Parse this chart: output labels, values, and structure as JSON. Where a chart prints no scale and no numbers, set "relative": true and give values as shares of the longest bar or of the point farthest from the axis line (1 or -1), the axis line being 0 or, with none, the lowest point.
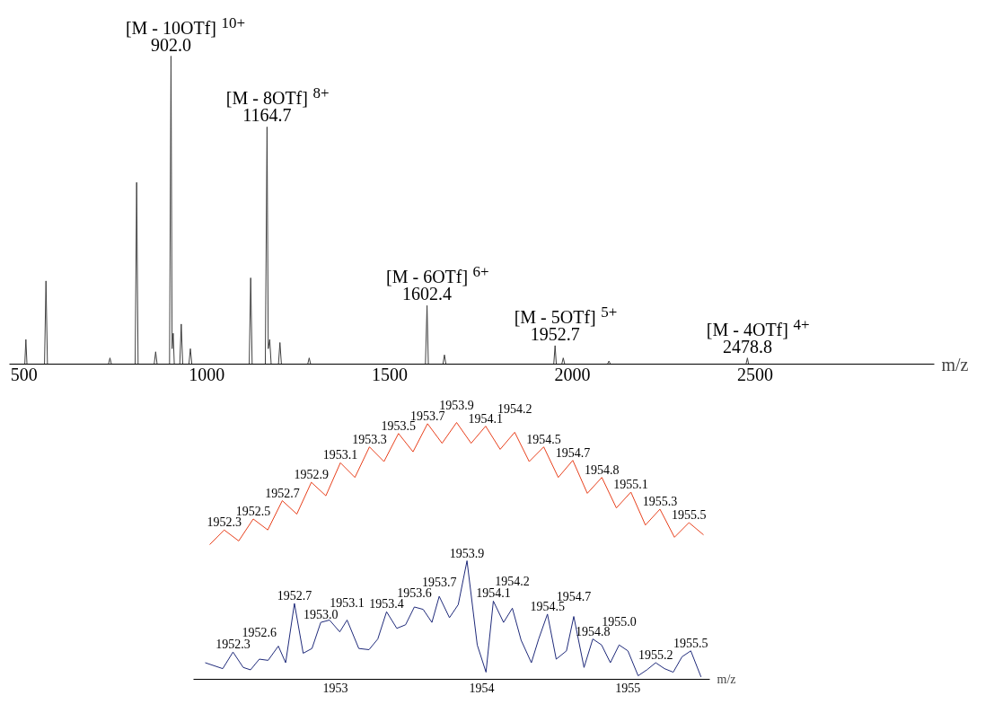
{
  "chart_data": [
    {
      "type": "line",
      "relative": true,
      "color": "#404040",
      "xlabel": "m/z",
      "xlim": [
        460,
        2990
      ],
      "xticks": [
        500,
        1000,
        1500,
        2000,
        2500
      ],
      "tick_labels": "x",
      "x": [
        500,
        502,
        505,
        508,
        556,
        560,
        564,
        731,
        735,
        739,
        804,
        808,
        812,
        856,
        860,
        864,
        898,
        902,
        905,
        908,
        911,
        926,
        930,
        934,
        951,
        955,
        959,
        1116,
        1120,
        1124,
        1160,
        1164.7,
        1168,
        1172,
        1176,
        1196,
        1200,
        1204,
        1276,
        1280,
        1284,
        1598,
        1602.4,
        1606,
        1646,
        1650,
        1654,
        1949,
        1952.7,
        1956,
        1971,
        1975,
        1979,
        2096,
        2100,
        2104,
        2475,
        2478.8,
        2482,
        2985
      ],
      "values": [
        0,
        0,
        0.08,
        0,
        0,
        0.27,
        0,
        0,
        0.02,
        0,
        0,
        0.59,
        0,
        0,
        0.04,
        0,
        0,
        1.0,
        0.05,
        0.1,
        0,
        0,
        0.13,
        0,
        0,
        0.05,
        0,
        0,
        0.28,
        0,
        0,
        0.77,
        0.05,
        0.08,
        0,
        0,
        0.07,
        0,
        0,
        0.02,
        0,
        0,
        0.19,
        0,
        0,
        0.03,
        0,
        0,
        0.06,
        0,
        0,
        0.02,
        0,
        0,
        0.01,
        0,
        0,
        0.02,
        0,
        0
      ],
      "annotations": [
        {
          "text": "902.0",
          "x": 902.0,
          "y": 1.0
        },
        {
          "text": "[M - 10OTf]$^{10+}$",
          "x": 902.0,
          "y": 1.0
        },
        {
          "text": "1164.7",
          "x": 1164.7,
          "y": 0.77
        },
        {
          "text": "[M - 8OTf]$^{8+}$",
          "x": 1164.7,
          "y": 0.77
        },
        {
          "text": "1602.4",
          "x": 1602.4,
          "y": 0.19
        },
        {
          "text": "[M - 6OTf]$^{6+}$",
          "x": 1602.4,
          "y": 0.19
        },
        {
          "text": "1952.7",
          "x": 1952.7,
          "y": 0.06
        },
        {
          "text": "[M - 5OTf]$^{5+}$",
          "x": 1952.7,
          "y": 0.06
        },
        {
          "text": "2478.8",
          "x": 2478.8,
          "y": 0.02
        },
        {
          "text": "[M - 4OTf]$^{4+}$",
          "x": 2478.8,
          "y": 0.02
        }
      ]
    },
    {
      "type": "line",
      "relative": true,
      "color": "#e8401c",
      "tick_labels": false,
      "categories": [
        null,
        null,
        null,
        null,
        null,
        null,
        null,
        null,
        null,
        null,
        null,
        null,
        null,
        null,
        null,
        null,
        null,
        null,
        null,
        null,
        null,
        null,
        null,
        null,
        null,
        null,
        null,
        null,
        null,
        null,
        null,
        null,
        null,
        null,
        null
      ],
      "values": [
        0,
        0.12,
        0.03,
        0.21,
        0.12,
        0.36,
        0.25,
        0.51,
        0.4,
        0.67,
        0.55,
        0.8,
        0.68,
        0.91,
        0.76,
        0.99,
        0.83,
        1.0,
        0.83,
        0.97,
        0.78,
        0.92,
        0.68,
        0.8,
        0.55,
        0.69,
        0.42,
        0.55,
        0.3,
        0.43,
        0.16,
        0.29,
        0.06,
        0.18,
        0.08
      ],
      "annotations": [
        "1952.3",
        "1952.5",
        "1952.7",
        "1952.9",
        "1953.1",
        "1953.3",
        "1953.5",
        "1953.7",
        "1953.9",
        "1954.1",
        "1954.2",
        "1954.5",
        "1954.7",
        "1954.8",
        "1955.1",
        "1955.3",
        "1955.5"
      ]
    },
    {
      "type": "line",
      "relative": true,
      "color": "#1f2a7a",
      "xlabel": "m/z",
      "xlim": [
        1952.03,
        1955.56
      ],
      "xticks": [
        1953,
        1954,
        1955
      ],
      "tick_labels": "x",
      "x": [
        1952.11,
        1952.23,
        1952.3,
        1952.37,
        1952.42,
        1952.48,
        1952.54,
        1952.61,
        1952.66,
        1952.72,
        1952.78,
        1952.84,
        1952.9,
        1952.96,
        1953.03,
        1953.08,
        1953.16,
        1953.23,
        1953.29,
        1953.35,
        1953.42,
        1953.48,
        1953.54,
        1953.6,
        1953.66,
        1953.71,
        1953.78,
        1953.84,
        1953.9,
        1953.97,
        1954.03,
        1954.08,
        1954.15,
        1954.21,
        1954.27,
        1954.34,
        1954.39,
        1954.45,
        1954.51,
        1954.58,
        1954.63,
        1954.7,
        1954.76,
        1954.82,
        1954.88,
        1954.94,
        1955.0,
        1955.07,
        1955.13,
        1955.19,
        1955.25,
        1955.31,
        1955.37,
        1955.43,
        1955.5
      ],
      "values": [
        0.14,
        0.09,
        0.23,
        0.1,
        0.08,
        0.17,
        0.16,
        0.28,
        0.14,
        0.64,
        0.22,
        0.26,
        0.48,
        0.5,
        0.4,
        0.5,
        0.26,
        0.25,
        0.34,
        0.57,
        0.43,
        0.46,
        0.61,
        0.59,
        0.48,
        0.7,
        0.52,
        0.63,
        1.0,
        0.29,
        0.06,
        0.66,
        0.48,
        0.6,
        0.33,
        0.14,
        0.34,
        0.55,
        0.17,
        0.24,
        0.53,
        0.1,
        0.34,
        0.29,
        0.14,
        0.29,
        0.24,
        0.03,
        0.08,
        0.14,
        0.09,
        0.06,
        0.19,
        0.24,
        0.02
      ],
      "annotations": [
        {
          "text": "1952.3",
          "x": 1952.3,
          "y": 0.23
        },
        {
          "text": "1952.6",
          "x": 1952.48,
          "y": 0.17
        },
        {
          "text": "1952.7",
          "x": 1952.72,
          "y": 0.64
        },
        {
          "text": "1953.0",
          "x": 1952.9,
          "y": 0.48
        },
        {
          "text": "1953.1",
          "x": 1953.08,
          "y": 0.5
        },
        {
          "text": "1953.4",
          "x": 1953.35,
          "y": 0.57
        },
        {
          "text": "1953.6",
          "x": 1953.54,
          "y": 0.61
        },
        {
          "text": "1953.7",
          "x": 1953.71,
          "y": 0.7
        },
        {
          "text": "1953.9",
          "x": 1953.9,
          "y": 1.0
        },
        {
          "text": "1954.1",
          "x": 1954.08,
          "y": 0.66
        },
        {
          "text": "1954.2",
          "x": 1954.21,
          "y": 0.6
        },
        {
          "text": "1954.5",
          "x": 1954.45,
          "y": 0.55
        },
        {
          "text": "1954.7",
          "x": 1954.63,
          "y": 0.53
        },
        {
          "text": "1954.8",
          "x": 1954.76,
          "y": 0.34
        },
        {
          "text": "1955.0",
          "x": 1954.94,
          "y": 0.29
        },
        {
          "text": "1955.2",
          "x": 1955.19,
          "y": 0.14
        },
        {
          "text": "1955.5",
          "x": 1955.43,
          "y": 0.24
        }
      ]
    }
  ]
}
